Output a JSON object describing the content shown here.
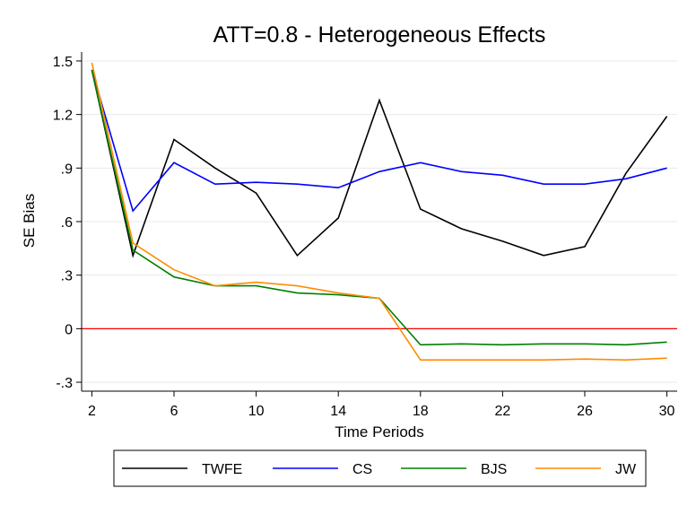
{
  "chart_data": {
    "type": "line",
    "title": "ATT=0.8 - Heterogeneous Effects",
    "xlabel": "Time Periods",
    "ylabel": "SE Bias",
    "xlim": [
      1.5,
      30.5
    ],
    "ylim": [
      -0.35,
      1.55
    ],
    "xticks": [
      2,
      6,
      10,
      14,
      18,
      22,
      26,
      30
    ],
    "xtick_labels": [
      "2",
      "6",
      "10",
      "14",
      "18",
      "22",
      "26",
      "30"
    ],
    "yticks": [
      -0.3,
      0,
      0.3,
      0.6,
      0.9,
      1.2,
      1.5
    ],
    "ytick_labels": [
      "-.3",
      "0",
      ".3",
      ".6",
      ".9",
      "1.2",
      "1.5"
    ],
    "grid": true,
    "legend_position": "bottom",
    "reference_line": {
      "y": 0,
      "color": "#ff0000"
    },
    "x": [
      2,
      4,
      6,
      8,
      10,
      12,
      14,
      16,
      18,
      20,
      22,
      24,
      26,
      28,
      30
    ],
    "series": [
      {
        "name": "TWFE",
        "color": "#000000",
        "values": [
          1.45,
          0.41,
          1.06,
          0.9,
          0.76,
          0.41,
          0.62,
          1.28,
          0.67,
          0.56,
          0.49,
          0.41,
          0.46,
          0.87,
          1.19
        ]
      },
      {
        "name": "CS",
        "color": "#0000ff",
        "values": [
          1.45,
          0.66,
          0.93,
          0.81,
          0.82,
          0.81,
          0.79,
          0.88,
          0.93,
          0.88,
          0.86,
          0.81,
          0.81,
          0.84,
          0.9
        ]
      },
      {
        "name": "BJS",
        "color": "#008000",
        "values": [
          1.45,
          0.44,
          0.29,
          0.24,
          0.24,
          0.2,
          0.19,
          0.17,
          -0.09,
          -0.085,
          -0.09,
          -0.085,
          -0.085,
          -0.09,
          -0.075
        ]
      },
      {
        "name": "JW",
        "color": "#ff8c00",
        "values": [
          1.49,
          0.48,
          0.33,
          0.24,
          0.26,
          0.24,
          0.2,
          0.17,
          -0.175,
          -0.175,
          -0.175,
          -0.175,
          -0.17,
          -0.175,
          -0.165
        ]
      }
    ]
  }
}
